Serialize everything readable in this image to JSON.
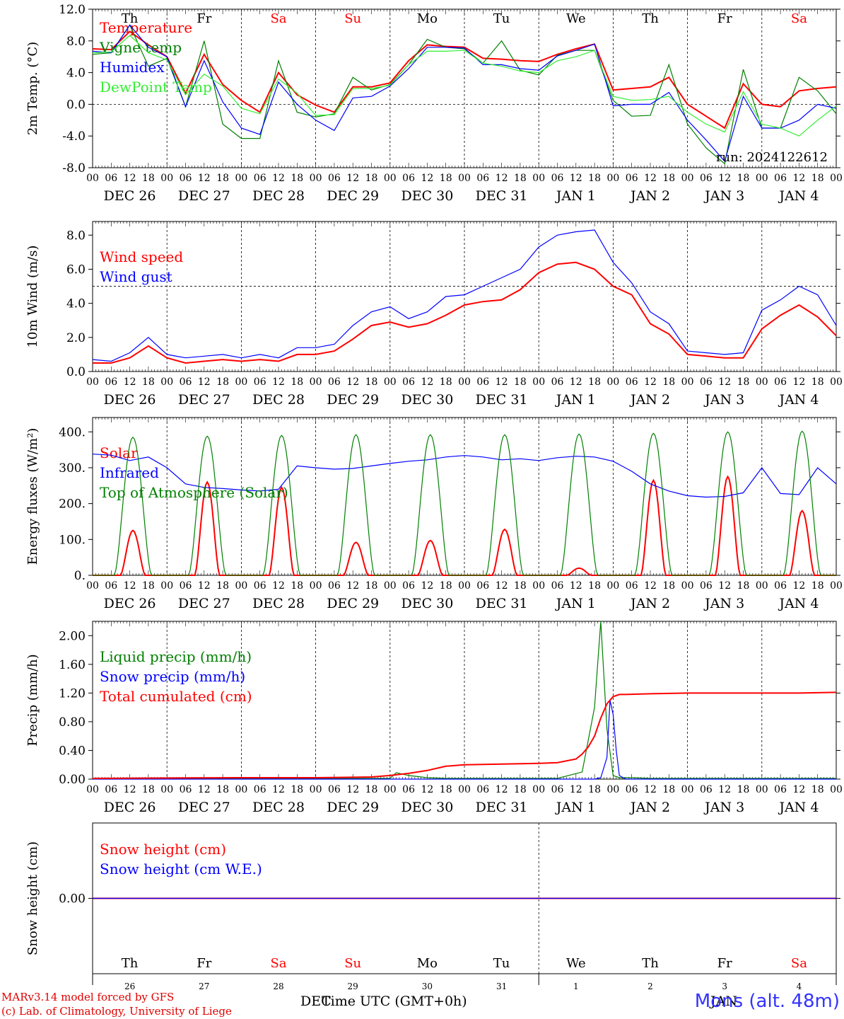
{
  "footer": {
    "model": "MARv3.14 model forced by GFS",
    "lab": "(c) Lab. of Climatology, University of Liege",
    "station": "Mons (alt. 48m)",
    "xaxis_title": "Time UTC (GMT+0h)",
    "month_dec": "DEC",
    "month_jan": "JAN"
  },
  "colors": {
    "red": "#ff0000",
    "green": "#008000",
    "blue": "#0000ff",
    "light_green": "#33ee33",
    "weekend": "#ff0000"
  },
  "days": [
    {
      "abbr": "Th",
      "date": "DEC 26",
      "num": "26",
      "weekend": false
    },
    {
      "abbr": "Fr",
      "date": "DEC 27",
      "num": "27",
      "weekend": false
    },
    {
      "abbr": "Sa",
      "date": "DEC 28",
      "num": "28",
      "weekend": true
    },
    {
      "abbr": "Su",
      "date": "DEC 29",
      "num": "29",
      "weekend": true
    },
    {
      "abbr": "Mo",
      "date": "DEC 30",
      "num": "30",
      "weekend": false
    },
    {
      "abbr": "Tu",
      "date": "DEC 31",
      "num": "31",
      "weekend": false
    },
    {
      "abbr": "We",
      "date": "JAN  1",
      "num": "1",
      "weekend": false
    },
    {
      "abbr": "Th",
      "date": "JAN  2",
      "num": "2",
      "weekend": false
    },
    {
      "abbr": "Fr",
      "date": "JAN  3",
      "num": "3",
      "weekend": false
    },
    {
      "abbr": "Sa",
      "date": "JAN  4",
      "num": "4",
      "weekend": true
    }
  ],
  "hour_ticks": [
    "00",
    "06",
    "12",
    "18"
  ],
  "last_hour_tick": "00",
  "chart_data": [
    {
      "type": "line",
      "ylabel": "2m Temp. (°C)",
      "ylim": [
        -8,
        12
      ],
      "yticks": [
        "-8.0",
        "-4.0",
        "0.0",
        "4.0",
        "8.0",
        "12.0"
      ],
      "ytick_values": [
        -8,
        -4,
        0,
        4,
        8,
        12
      ],
      "ref_line": 0,
      "annotation": "run: 2024122612",
      "show_day_abbr": true,
      "x_hours": [
        0,
        6,
        12,
        18,
        24,
        30,
        36,
        42,
        48,
        54,
        60,
        66,
        72,
        78,
        84,
        90,
        96,
        102,
        108,
        114,
        120,
        126,
        132,
        138,
        144,
        150,
        156,
        162,
        168,
        174,
        180,
        186,
        192,
        198,
        204,
        210,
        216,
        222,
        228,
        234,
        240
      ],
      "series": [
        {
          "name": "Temperature",
          "color": "red",
          "values": [
            7.0,
            6.9,
            9.2,
            7.5,
            6.0,
            1.4,
            6.3,
            2.5,
            0.5,
            -1.0,
            4.0,
            1.2,
            -0.1,
            -1.0,
            2.2,
            2.2,
            2.7,
            5.5,
            7.5,
            7.3,
            7.2,
            5.8,
            5.7,
            5.5,
            5.4,
            6.3,
            7.0,
            7.6,
            1.8,
            2.0,
            2.2,
            3.4,
            0.0,
            -1.5,
            -3.0,
            2.6,
            0.0,
            -0.3,
            1.7,
            2.0,
            2.2
          ]
        },
        {
          "name": "Vigne temp",
          "color": "green",
          "values": [
            6.3,
            6.5,
            10.0,
            4.8,
            5.8,
            -0.3,
            8.0,
            -2.5,
            -4.3,
            -4.3,
            5.5,
            -1.0,
            -1.6,
            -1.2,
            3.4,
            1.8,
            2.5,
            5.0,
            8.2,
            7.2,
            7.0,
            5.2,
            8.0,
            4.3,
            3.7,
            6.2,
            6.8,
            6.8,
            0.5,
            -1.5,
            -1.4,
            5.0,
            -2.5,
            -5.5,
            -7.5,
            4.4,
            -3.0,
            -3.0,
            3.4,
            1.7,
            -1.2
          ]
        },
        {
          "name": "Humidex",
          "color": "blue",
          "values": [
            6.7,
            6.5,
            10.0,
            7.2,
            6.0,
            -0.3,
            5.5,
            0.3,
            -3.0,
            -3.8,
            2.8,
            0.0,
            -2.0,
            -3.3,
            0.8,
            1.0,
            2.3,
            4.5,
            7.2,
            7.2,
            7.1,
            5.0,
            5.0,
            4.5,
            4.3,
            6.1,
            6.8,
            7.6,
            -0.2,
            0.0,
            0.0,
            1.5,
            -2.0,
            -4.5,
            -7.2,
            1.0,
            -3.0,
            -3.0,
            -2.0,
            0.0,
            -0.5
          ]
        },
        {
          "name": "DewPoint Temp",
          "color": "light_green",
          "values": [
            6.5,
            6.6,
            8.7,
            6.5,
            5.6,
            1.2,
            3.8,
            2.3,
            -0.5,
            -1.2,
            3.2,
            1.4,
            -1.4,
            -1.3,
            2.0,
            2.0,
            2.4,
            5.0,
            6.7,
            6.7,
            6.8,
            5.2,
            4.8,
            4.2,
            4.0,
            5.5,
            6.0,
            6.8,
            1.0,
            0.5,
            0.6,
            1.0,
            -1.0,
            -2.5,
            -3.5,
            1.6,
            -2.5,
            -3.0,
            -4.0,
            -2.0,
            -0.2
          ]
        }
      ]
    },
    {
      "type": "line",
      "ylabel": "10m Wind (m/s)",
      "ylim": [
        0,
        8.8
      ],
      "yticks": [
        "0.0",
        "2.0",
        "4.0",
        "6.0",
        "8.0"
      ],
      "ytick_values": [
        0,
        2,
        4,
        6,
        8
      ],
      "ref_line": 5,
      "show_day_abbr": false,
      "x_hours": [
        0,
        6,
        12,
        18,
        24,
        30,
        36,
        42,
        48,
        54,
        60,
        66,
        72,
        78,
        84,
        90,
        96,
        102,
        108,
        114,
        120,
        126,
        132,
        138,
        144,
        150,
        156,
        162,
        168,
        174,
        180,
        186,
        192,
        198,
        204,
        210,
        216,
        222,
        228,
        234,
        240
      ],
      "series": [
        {
          "name": "Wind speed",
          "color": "red",
          "values": [
            0.5,
            0.5,
            0.8,
            1.5,
            0.8,
            0.5,
            0.6,
            0.7,
            0.6,
            0.7,
            0.6,
            1.0,
            1.0,
            1.2,
            1.9,
            2.7,
            2.9,
            2.6,
            2.8,
            3.3,
            3.9,
            4.1,
            4.2,
            4.8,
            5.8,
            6.3,
            6.4,
            6.0,
            5.0,
            4.5,
            2.8,
            2.2,
            1.0,
            0.9,
            0.8,
            0.8,
            2.5,
            3.3,
            3.9,
            3.2,
            2.1
          ]
        },
        {
          "name": "Wind gust",
          "color": "blue",
          "values": [
            0.7,
            0.6,
            1.1,
            2.0,
            1.0,
            0.8,
            0.9,
            1.0,
            0.8,
            1.0,
            0.8,
            1.4,
            1.4,
            1.6,
            2.7,
            3.5,
            3.8,
            3.1,
            3.5,
            4.4,
            4.5,
            5.0,
            5.5,
            6.0,
            7.3,
            8.0,
            8.2,
            8.3,
            6.4,
            5.2,
            3.5,
            2.8,
            1.2,
            1.1,
            1.0,
            1.1,
            3.6,
            4.2,
            5.0,
            4.5,
            2.7
          ]
        }
      ]
    },
    {
      "type": "line",
      "ylabel": "Energy fluxes (W/m²)",
      "ylim": [
        0,
        440
      ],
      "yticks": [
        "0.",
        "100.",
        "200.",
        "300.",
        "400."
      ],
      "ytick_values": [
        0,
        100,
        200,
        300,
        400
      ],
      "show_day_abbr": false,
      "series": [
        {
          "name": "Solar",
          "color": "red",
          "daily_peaks": [
            125,
            260,
            245,
            92,
            97,
            128,
            20,
            265,
            275,
            180
          ]
        },
        {
          "name": "Infrared",
          "color": "blue",
          "x_hours": [
            0,
            6,
            12,
            18,
            24,
            30,
            36,
            42,
            48,
            54,
            60,
            66,
            72,
            78,
            84,
            90,
            96,
            102,
            108,
            114,
            120,
            126,
            132,
            138,
            144,
            150,
            156,
            162,
            168,
            174,
            180,
            186,
            192,
            198,
            204,
            210,
            216,
            222,
            228,
            234,
            240
          ],
          "values": [
            338,
            335,
            320,
            330,
            300,
            255,
            245,
            242,
            238,
            235,
            240,
            305,
            300,
            296,
            298,
            305,
            312,
            318,
            322,
            330,
            334,
            330,
            322,
            325,
            320,
            328,
            332,
            330,
            318,
            290,
            255,
            235,
            222,
            218,
            220,
            230,
            300,
            228,
            225,
            300,
            255
          ]
        },
        {
          "name": "Top of Atmosphere (Solar)",
          "color": "green",
          "daily_peaks": [
            385,
            388,
            390,
            392,
            392,
            392,
            394,
            396,
            400,
            402
          ]
        }
      ]
    },
    {
      "type": "line",
      "ylabel": "Precip (mm/h)",
      "ylim": [
        0,
        2.2
      ],
      "yticks": [
        "0.00",
        "0.40",
        "0.80",
        "1.20",
        "1.60",
        "2.00"
      ],
      "ytick_values": [
        0,
        0.4,
        0.8,
        1.2,
        1.6,
        2.0
      ],
      "show_day_abbr": false,
      "series": [
        {
          "name": "Liquid precip (mm/h)",
          "color": "green",
          "x_hours": [
            0,
            96,
            98,
            102,
            108,
            114,
            120,
            150,
            158,
            162,
            164,
            166,
            168,
            170,
            174,
            180,
            240
          ],
          "values": [
            0.01,
            0.01,
            0.09,
            0.05,
            0.02,
            0.01,
            0.01,
            0.01,
            0.1,
            1.0,
            2.2,
            0.7,
            0.05,
            0.02,
            0.02,
            0.01,
            0.01
          ]
        },
        {
          "name": "Snow precip (mm/h)",
          "color": "blue",
          "x_hours": [
            0,
            160,
            162,
            164,
            166,
            167,
            168,
            169,
            170,
            172,
            240
          ],
          "values": [
            0,
            0,
            0,
            0.02,
            0.3,
            1.1,
            0.9,
            0.4,
            0.05,
            0,
            0
          ]
        },
        {
          "name": "Total cumulated (cm)",
          "color": "red",
          "x_hours": [
            0,
            48,
            72,
            90,
            96,
            102,
            108,
            114,
            120,
            132,
            144,
            150,
            156,
            158,
            160,
            162,
            164,
            166,
            168,
            170,
            172,
            180,
            192,
            204,
            216,
            228,
            240
          ],
          "values": [
            0.01,
            0.02,
            0.02,
            0.03,
            0.05,
            0.08,
            0.12,
            0.18,
            0.2,
            0.21,
            0.22,
            0.23,
            0.28,
            0.35,
            0.45,
            0.6,
            0.85,
            1.05,
            1.15,
            1.18,
            1.18,
            1.19,
            1.2,
            1.2,
            1.2,
            1.2,
            1.21
          ]
        }
      ]
    },
    {
      "type": "line",
      "ylabel": "Snow height (cm)",
      "ylim": [
        -1,
        1
      ],
      "yticks": [
        "0.00"
      ],
      "ytick_values": [
        0
      ],
      "show_day_abbr": false,
      "series": [
        {
          "name": "Snow height (cm)",
          "color": "red",
          "x_hours": [
            0,
            240
          ],
          "values": [
            0,
            0
          ]
        },
        {
          "name": "Snow height (cm W.E.)",
          "color": "blue",
          "x_hours": [
            0,
            240
          ],
          "values": [
            0,
            0
          ]
        }
      ]
    }
  ]
}
